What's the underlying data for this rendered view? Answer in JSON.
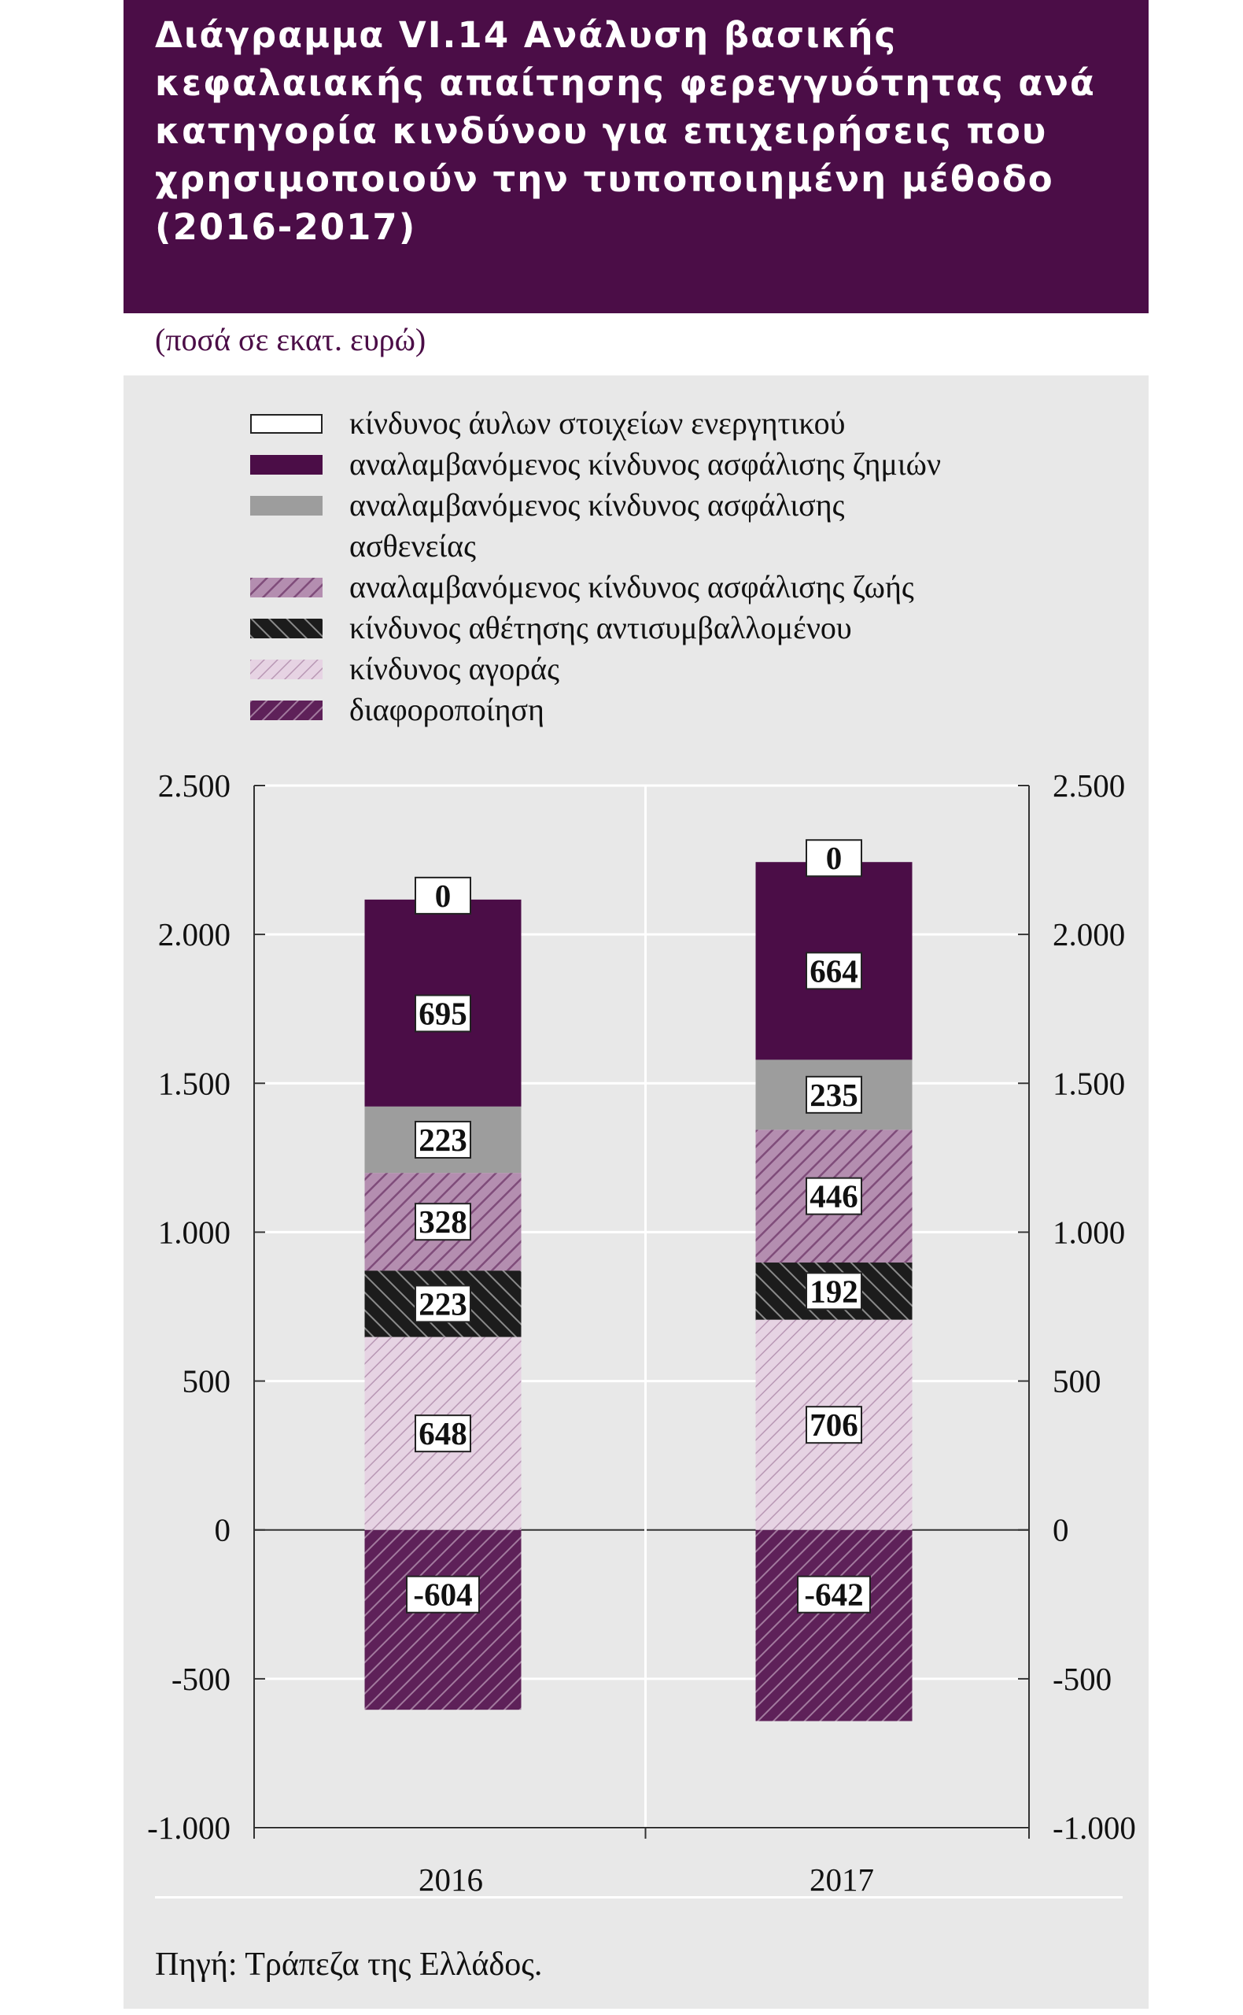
{
  "header": {
    "title_lines": [
      "Διάγραμμα VI.14 Ανάλυση βασικής",
      "κεφαλαιακής απαίτησης φερεγγυότητας ανά",
      "κατηγορία κινδύνου για επιχειρήσεις που",
      "χρησιμοποιούν την τυποποιημένη μέθοδο",
      "(2016-2017)"
    ]
  },
  "units": "(ποσά σε εκατ. ευρώ)",
  "source": "Πηγή: Τράπεζα της Ελλάδος.",
  "colors": {
    "intangible": "#ffffff",
    "nonlife": "#4b0d47",
    "health": "#9d9d9d",
    "life": "#a47ba0",
    "default": "#2b2b2b",
    "market": "#e0c8dd",
    "diversification": "#6a2f66"
  },
  "chart_data": {
    "type": "bar",
    "stacked": true,
    "categories": [
      "2016",
      "2017"
    ],
    "ylim": [
      -1000,
      2500
    ],
    "yticks": [
      -1000,
      -500,
      0,
      500,
      1000,
      1500,
      2000,
      2500
    ],
    "ytick_labels": [
      "-1.000",
      "-500",
      "0",
      "500",
      "1.000",
      "1.500",
      "2.000",
      "2.500"
    ],
    "secondary_axis": true,
    "grid": "horizontal",
    "legend_position": "top",
    "series": [
      {
        "key": "diversification",
        "name": "διαφοροποίηση",
        "pattern": "hatch-dark",
        "values": [
          -604,
          -642
        ],
        "labels": [
          "-604",
          "-642"
        ]
      },
      {
        "key": "market",
        "name": "κίνδυνος αγοράς",
        "pattern": "hatch-light",
        "values": [
          648,
          706
        ],
        "labels": [
          "648",
          "706"
        ]
      },
      {
        "key": "default",
        "name": "κίνδυνος αθέτησης αντισυμβαλλομένου",
        "pattern": "hatch-black",
        "values": [
          223,
          192
        ],
        "labels": [
          "223",
          "192"
        ]
      },
      {
        "key": "life",
        "name": "αναλαμβανόμενος κίνδυνος ασφάλισης ζωής",
        "pattern": "hatch-mid",
        "values": [
          328,
          446
        ],
        "labels": [
          "328",
          "446"
        ]
      },
      {
        "key": "health",
        "name": "αναλαμβανόμενος κίνδυνος ασφάλισης ασθενείας",
        "pattern": "solid",
        "values": [
          223,
          235
        ],
        "labels": [
          "223",
          "235"
        ]
      },
      {
        "key": "nonlife",
        "name": "αναλαμβανόμενος κίνδυνος ασφάλισης ζημιών",
        "pattern": "solid",
        "values": [
          695,
          664
        ],
        "labels": [
          "695",
          "664"
        ]
      },
      {
        "key": "intangible",
        "name": "κίνδυνος άυλων στοιχείων ενεργητικού",
        "pattern": "outline",
        "values": [
          0,
          0
        ],
        "labels": [
          "0",
          "0"
        ]
      }
    ]
  },
  "legend": [
    {
      "key": "intangible",
      "lines": [
        "κίνδυνος άυλων στοιχείων ενεργητικού"
      ]
    },
    {
      "key": "nonlife",
      "lines": [
        "αναλαμβανόμενος κίνδυνος ασφάλισης ζημιών"
      ]
    },
    {
      "key": "health",
      "lines": [
        "αναλαμβανόμενος κίνδυνος ασφάλισης",
        "ασθενείας"
      ]
    },
    {
      "key": "life",
      "lines": [
        "αναλαμβανόμενος κίνδυνος ασφάλισης ζωής"
      ]
    },
    {
      "key": "default",
      "lines": [
        "κίνδυνος αθέτησης αντισυμβαλλομένου"
      ]
    },
    {
      "key": "market",
      "lines": [
        "κίνδυνος αγοράς"
      ]
    },
    {
      "key": "diversification",
      "lines": [
        "διαφοροποίηση"
      ]
    }
  ]
}
